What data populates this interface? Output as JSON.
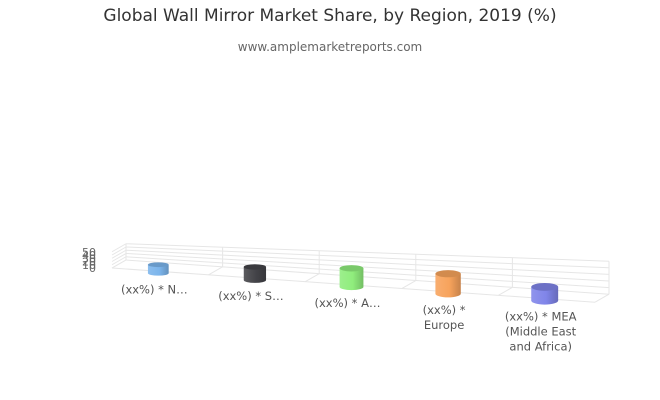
{
  "chart_data": {
    "type": "bar",
    "variant": "3d-cylinder",
    "title": "Global Wall Mirror Market Share, by Region, 2019 (%)",
    "subtitle": "www.amplemarketreports.com",
    "xlabel": "",
    "ylabel": "",
    "ylim": [
      0,
      50
    ],
    "yticks": [
      0,
      10,
      20,
      30,
      40,
      50
    ],
    "grid": true,
    "legend": "none",
    "categories": [
      "(xx%) * N…",
      "(xx%) * S…",
      "(xx%) * A…",
      "(xx%) * Europe",
      "(xx%) * MEA (Middle East and Africa)"
    ],
    "category_lines": [
      [
        "(xx%) * N…"
      ],
      [
        "(xx%) * S…"
      ],
      [
        "(xx%) * A…"
      ],
      [
        "(xx%) *",
        "Europe"
      ],
      [
        "(xx%) * MEA",
        "(Middle East",
        "and Africa)"
      ]
    ],
    "values": [
      24,
      31,
      38,
      36,
      22
    ],
    "colors": [
      "#7cb5ec",
      "#434348",
      "#90ed7d",
      "#f7a35c",
      "#8085e9"
    ]
  }
}
